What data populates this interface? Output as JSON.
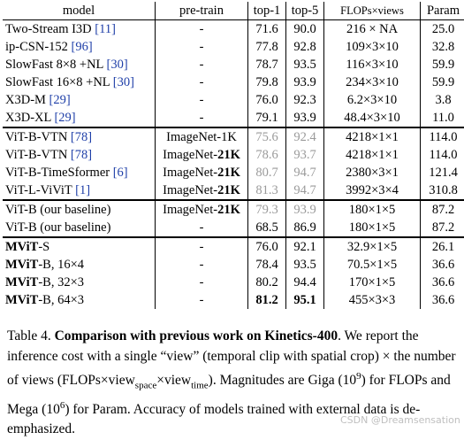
{
  "table": {
    "headers": [
      "model",
      "pre-train",
      "top-1",
      "top-5",
      "FLOPs×views",
      "Param"
    ],
    "groups": [
      [
        {
          "model": "Two-Stream I3D ",
          "ref": "[11]",
          "pretrain": "-",
          "top1": "71.6",
          "top5": "90.0",
          "flops": "216 × NA",
          "param": "25.0"
        },
        {
          "model": "ip-CSN-152 ",
          "ref": "[96]",
          "pretrain": "-",
          "top1": "77.8",
          "top5": "92.8",
          "flops": "109×3×10",
          "param": "32.8"
        },
        {
          "model": "SlowFast 8×8 +NL ",
          "ref": "[30]",
          "pretrain": "-",
          "top1": "78.7",
          "top5": "93.5",
          "flops": "116×3×10",
          "param": "59.9"
        },
        {
          "model": "SlowFast 16×8 +NL ",
          "ref": "[30]",
          "pretrain": "-",
          "top1": "79.8",
          "top5": "93.9",
          "flops": "234×3×10",
          "param": "59.9"
        },
        {
          "model": "X3D-M ",
          "ref": "[29]",
          "pretrain": "-",
          "top1": "76.0",
          "top5": "92.3",
          "flops": "6.2×3×10",
          "param": "3.8"
        },
        {
          "model": "X3D-XL ",
          "ref": "[29]",
          "pretrain": "-",
          "top1": "79.1",
          "top5": "93.9",
          "flops": "48.4×3×10",
          "param": "11.0"
        }
      ],
      [
        {
          "model": "ViT-B-VTN ",
          "ref": "[78]",
          "pretrain": "ImageNet-1K",
          "pretrain_base": "",
          "pretrain_bold": "",
          "top1": "75.6",
          "top5": "92.4",
          "flops": "4218×1×1",
          "param": "114.0",
          "gray": true
        },
        {
          "model": "ViT-B-VTN ",
          "ref": "[78]",
          "pretrain_base": "ImageNet-",
          "pretrain_bold": "21K",
          "top1": "78.6",
          "top5": "93.7",
          "flops": "4218×1×1",
          "param": "114.0",
          "gray": true
        },
        {
          "model": "ViT-B-TimeSformer ",
          "ref": "[6]",
          "pretrain_base": "ImageNet-",
          "pretrain_bold": "21K",
          "top1": "80.7",
          "top5": "94.7",
          "flops": "2380×3×1",
          "param": "121.4",
          "gray": true
        },
        {
          "model": "ViT-L-ViViT ",
          "ref": "[1]",
          "pretrain_base": "ImageNet-",
          "pretrain_bold": "21K",
          "top1": "81.3",
          "top5": "94.7",
          "flops": "3992×3×4",
          "param": "310.8",
          "gray": true
        }
      ],
      [
        {
          "model": "ViT-B (our baseline)",
          "ref": "",
          "pretrain_base": "ImageNet-",
          "pretrain_bold": "21K",
          "top1": "79.3",
          "top5": "93.9",
          "flops": "180×1×5",
          "param": "87.2",
          "gray": true
        },
        {
          "model": "ViT-B (our baseline)",
          "ref": "",
          "pretrain": "-",
          "top1": "68.5",
          "top5": "86.9",
          "flops": "180×1×5",
          "param": "87.2"
        }
      ],
      [
        {
          "model_bold": "MViT",
          "model_rest": "-S",
          "pretrain": "-",
          "top1": "76.0",
          "top5": "92.1",
          "flops": "32.9×1×5",
          "param": "26.1"
        },
        {
          "model_bold": "MViT",
          "model_rest": "-B, 16×4",
          "pretrain": "-",
          "top1": "78.4",
          "top5": "93.5",
          "flops": "70.5×1×5",
          "param": "36.6"
        },
        {
          "model_bold": "MViT",
          "model_rest": "-B, 32×3",
          "pretrain": "-",
          "top1": "80.2",
          "top5": "94.4",
          "flops": "170×1×5",
          "param": "36.6"
        },
        {
          "model_bold": "MViT",
          "model_rest": "-B, 64×3",
          "pretrain": "-",
          "top1": "81.2",
          "top5": "95.1",
          "flops": "455×3×3",
          "param": "36.6",
          "bold_acc": true
        }
      ]
    ]
  },
  "caption": {
    "label": "Table 4. ",
    "title": "Comparison with previous work on Kinetics-400",
    "after_title": ". We report the inference cost with a single “view” (temporal clip with spatial crop) × the number of views (FLOPs×view",
    "sub_space": "space",
    "mid": "×view",
    "sub_time": "time",
    "tail1": "). Magnitudes are Giga (10",
    "sup9": "9",
    "tail2": ") for FLOPs and Mega (10",
    "sup6": "6",
    "tail3": ") for Param. Accuracy of models trained with external data is de-emphasized."
  },
  "watermark": "CSDN @Dreamsensation"
}
